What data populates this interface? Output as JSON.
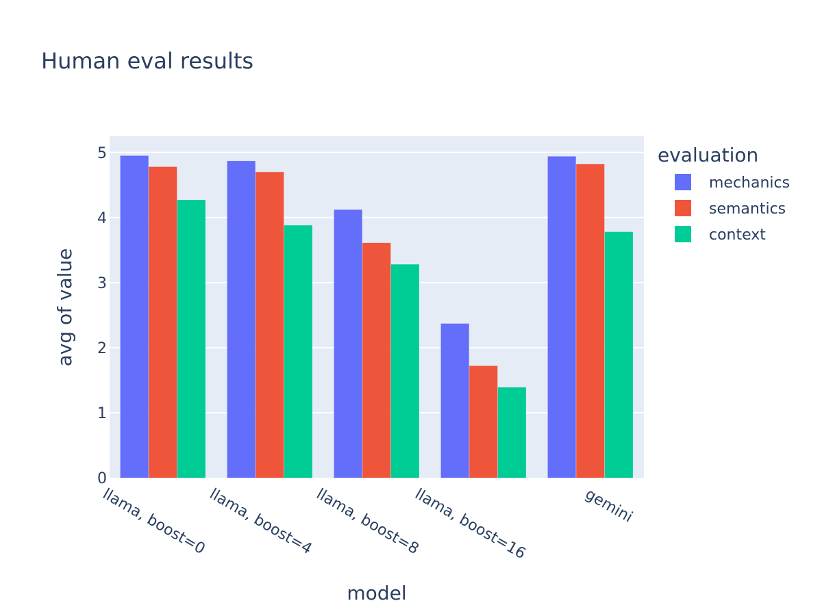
{
  "colors": {
    "plot_bg": "#e5ecf6",
    "grid": "#ffffff",
    "text": "#2a3f5f"
  },
  "chart_data": {
    "type": "bar",
    "title": "Human eval results",
    "xlabel": "model",
    "ylabel": "avg of value",
    "ylim": [
      0,
      5.25
    ],
    "yticks": [
      0,
      1,
      2,
      3,
      4,
      5
    ],
    "grid": true,
    "legend_position": "right",
    "legend_title": "evaluation",
    "categories": [
      "llama, boost=0",
      "llama, boost=4",
      "llama, boost=8",
      "llama, boost=16",
      "gemini"
    ],
    "series": [
      {
        "name": "mechanics",
        "color": "#636efa",
        "values": [
          4.95,
          4.87,
          4.12,
          2.37,
          4.94
        ]
      },
      {
        "name": "semantics",
        "color": "#ef553b",
        "values": [
          4.78,
          4.7,
          3.61,
          1.72,
          4.82
        ]
      },
      {
        "name": "context",
        "color": "#00cc96",
        "values": [
          4.27,
          3.88,
          3.28,
          1.39,
          3.78
        ]
      }
    ]
  }
}
